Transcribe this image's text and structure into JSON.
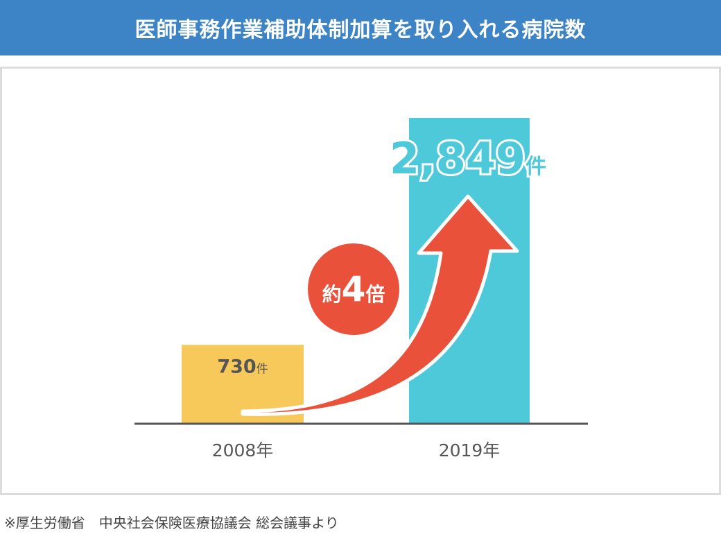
{
  "header": {
    "title": "医師事務作業補助体制加算を取り入れる病院数"
  },
  "chart_data": {
    "type": "bar",
    "title": "医師事務作業補助体制加算を取り入れる病院数",
    "categories": [
      "2008年",
      "2019年"
    ],
    "values": [
      730,
      2849
    ],
    "value_labels": [
      {
        "number": "730",
        "unit": "件"
      },
      {
        "number": "2,849",
        "unit": "件"
      }
    ],
    "unit": "件",
    "ylim": [
      0,
      3200
    ],
    "grid": false,
    "colors": {
      "bar_2008": "#f7c95a",
      "bar_2019": "#4ec9d9",
      "arrow": "#e9513a",
      "axis": "#555555"
    },
    "annotation": {
      "prefix": "約",
      "number": "4",
      "suffix": "倍"
    }
  },
  "source": "※厚生労働省　中央社会保険医療協議会 総会議事より"
}
